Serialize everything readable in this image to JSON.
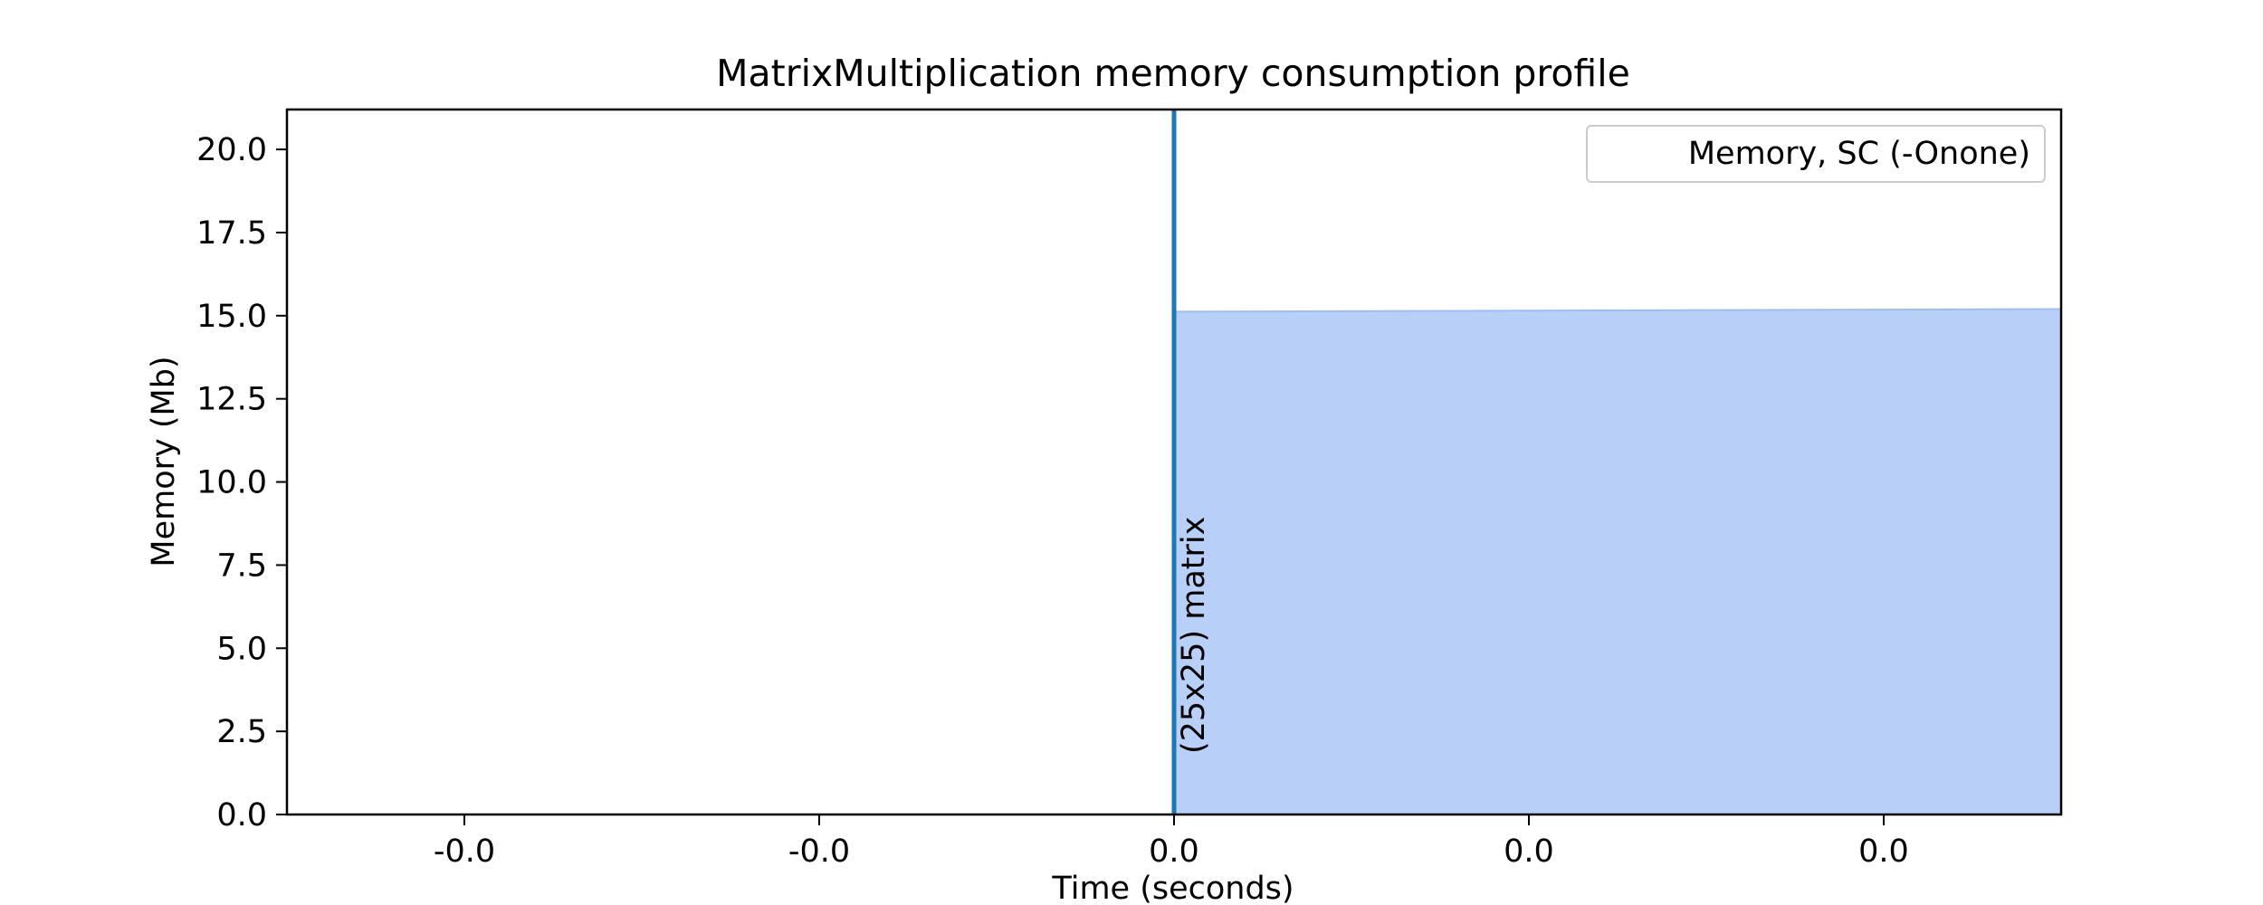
{
  "chart_data": {
    "type": "area",
    "title": "MatrixMultiplication memory consumption profile",
    "xlabel": "Time (seconds)",
    "ylabel": "Memory (Mb)",
    "x_ticks": [
      {
        "value": -0.0004,
        "label": "-0.0"
      },
      {
        "value": -0.0002,
        "label": "-0.0"
      },
      {
        "value": 0.0,
        "label": "0.0"
      },
      {
        "value": 0.0002,
        "label": "0.0"
      },
      {
        "value": 0.0004,
        "label": "0.0"
      }
    ],
    "y_ticks": [
      {
        "value": 0.0,
        "label": "0.0"
      },
      {
        "value": 2.5,
        "label": "2.5"
      },
      {
        "value": 5.0,
        "label": "5.0"
      },
      {
        "value": 7.5,
        "label": "7.5"
      },
      {
        "value": 10.0,
        "label": "10.0"
      },
      {
        "value": 12.5,
        "label": "12.5"
      },
      {
        "value": 15.0,
        "label": "15.0"
      },
      {
        "value": 17.5,
        "label": "17.5"
      },
      {
        "value": 20.0,
        "label": "20.0"
      }
    ],
    "xlim": [
      -0.0005,
      0.0005
    ],
    "ylim": [
      0.0,
      21.2
    ],
    "grid": false,
    "legend_position": "top-right",
    "series": [
      {
        "name": "Memory, SC (-Onone)",
        "color": "#b8d0f7",
        "edge_color": "#9fbdf0",
        "x": [
          0.0,
          0.0005
        ],
        "y": [
          15.12,
          15.2
        ]
      }
    ],
    "markers": [
      {
        "x": 0.0,
        "label": "(25x25) matrix",
        "color": "#1f77b4"
      }
    ]
  }
}
